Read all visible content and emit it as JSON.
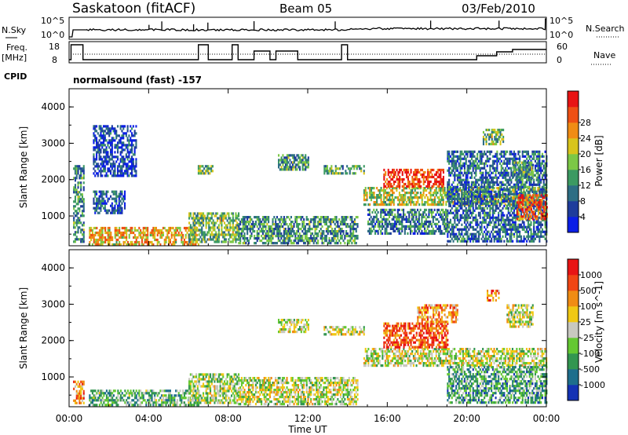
{
  "header": {
    "station": "Saskatoon (fitACF)",
    "beam": "Beam 05",
    "date": "03/Feb/2010"
  },
  "top_panels": {
    "nsky_label": "N.Sky",
    "nsky_ticks": [
      "10^5",
      "10^0"
    ],
    "nsearch_label": "N.Search",
    "nsearch_ticks": [
      "10^5",
      "10^0"
    ],
    "freq_label": "Freq.",
    "freq_unit": "[MHz]",
    "freq_ticks": [
      "18",
      "8"
    ],
    "nave_label": "Nave",
    "nave_ticks": [
      "60",
      "0"
    ],
    "cpid_label": "CPID",
    "cpid_value": "normalsound (fast) -157"
  },
  "chart_data": [
    {
      "type": "heatmap",
      "name": "power",
      "ylabel": "Slant Range [km]",
      "yticks": [
        "1000",
        "2000",
        "3000",
        "4000"
      ],
      "ylim": [
        180,
        4500
      ],
      "colorbar_label": "Power [dB]",
      "colorbar_ticks": [
        "4",
        "8",
        "12",
        "16",
        "20",
        "24",
        "28"
      ],
      "colors": [
        "#0a1ee6",
        "#1e3c9c",
        "#2d6e84",
        "#3c9a62",
        "#7cc846",
        "#d8c41c",
        "#f08c14",
        "#ee5014",
        "#e81414"
      ],
      "regions": [
        {
          "t": [
            0.2,
            0.7
          ],
          "r": [
            300,
            2400
          ],
          "level": 0.35
        },
        {
          "t": [
            1.2,
            2.8
          ],
          "r": [
            1100,
            1700
          ],
          "level": 0.2
        },
        {
          "t": [
            1.2,
            3.4
          ],
          "r": [
            2100,
            3500
          ],
          "level": 0.15
        },
        {
          "t": [
            1.0,
            6.5
          ],
          "r": [
            200,
            700
          ],
          "level": 0.65
        },
        {
          "t": [
            6.4,
            7.2
          ],
          "r": [
            2200,
            2400
          ],
          "level": 0.45
        },
        {
          "t": [
            6.0,
            8.5
          ],
          "r": [
            300,
            1100
          ],
          "level": 0.45
        },
        {
          "t": [
            8.5,
            14.5
          ],
          "r": [
            250,
            1000
          ],
          "level": 0.35
        },
        {
          "t": [
            10.5,
            12.0
          ],
          "r": [
            2250,
            2700
          ],
          "level": 0.35
        },
        {
          "t": [
            12.8,
            14.8
          ],
          "r": [
            2200,
            2400
          ],
          "level": 0.4
        },
        {
          "t": [
            14.8,
            24.0
          ],
          "r": [
            1300,
            1800
          ],
          "level": 0.55
        },
        {
          "t": [
            15.8,
            18.8
          ],
          "r": [
            1800,
            2300
          ],
          "level": 0.9
        },
        {
          "t": [
            15.0,
            19.0
          ],
          "r": [
            500,
            1200
          ],
          "level": 0.3
        },
        {
          "t": [
            19.0,
            24.0
          ],
          "r": [
            300,
            2800
          ],
          "level": 0.25
        },
        {
          "t": [
            22.5,
            24.0
          ],
          "r": [
            900,
            1600
          ],
          "level": 0.85
        },
        {
          "t": [
            20.8,
            21.8
          ],
          "r": [
            3000,
            3400
          ],
          "level": 0.45
        },
        {
          "t": [
            22.3,
            23.3
          ],
          "r": [
            2000,
            2500
          ],
          "level": 0.4
        }
      ]
    },
    {
      "type": "heatmap",
      "name": "velocity",
      "ylabel": "Slant Range [km]",
      "yticks": [
        "1000",
        "2000",
        "3000",
        "4000"
      ],
      "ylim": [
        180,
        4500
      ],
      "xlabel": "Time UT",
      "xticks": [
        "00:00",
        "04:00",
        "08:00",
        "12:00",
        "16:00",
        "20:00",
        "00:00"
      ],
      "xlim": [
        0,
        24
      ],
      "colorbar_label": "Velocity [m s^-1]",
      "colorbar_ticks": [
        "1000",
        "500",
        "100",
        "25",
        "-25",
        "-100",
        "-500",
        "-1000"
      ],
      "colors": [
        "#1432b4",
        "#1e6e8c",
        "#329650",
        "#64c832",
        "#c8c8c0",
        "#f0c814",
        "#f08c14",
        "#f04614",
        "#e81414"
      ],
      "regions": [
        {
          "t": [
            0.2,
            0.7
          ],
          "r": [
            300,
            900
          ],
          "level": 0.7
        },
        {
          "t": [
            1.0,
            6.5
          ],
          "r": [
            200,
            650
          ],
          "level": 0.35
        },
        {
          "t": [
            6.0,
            8.5
          ],
          "r": [
            300,
            1100
          ],
          "level": 0.45
        },
        {
          "t": [
            8.5,
            14.5
          ],
          "r": [
            250,
            1000
          ],
          "level": 0.5
        },
        {
          "t": [
            10.5,
            12.0
          ],
          "r": [
            2250,
            2600
          ],
          "level": 0.5
        },
        {
          "t": [
            12.8,
            14.8
          ],
          "r": [
            2200,
            2400
          ],
          "level": 0.5
        },
        {
          "t": [
            14.8,
            24.0
          ],
          "r": [
            1300,
            1800
          ],
          "level": 0.5
        },
        {
          "t": [
            15.8,
            19.0
          ],
          "r": [
            1800,
            2500
          ],
          "level": 0.85
        },
        {
          "t": [
            17.5,
            19.5
          ],
          "r": [
            2500,
            3000
          ],
          "level": 0.7
        },
        {
          "t": [
            19.0,
            24.0
          ],
          "r": [
            300,
            1300
          ],
          "level": 0.3
        },
        {
          "t": [
            21.0,
            21.6
          ],
          "r": [
            3100,
            3400
          ],
          "level": 0.75
        },
        {
          "t": [
            22.0,
            23.3
          ],
          "r": [
            2400,
            3000
          ],
          "level": 0.5
        }
      ]
    }
  ]
}
